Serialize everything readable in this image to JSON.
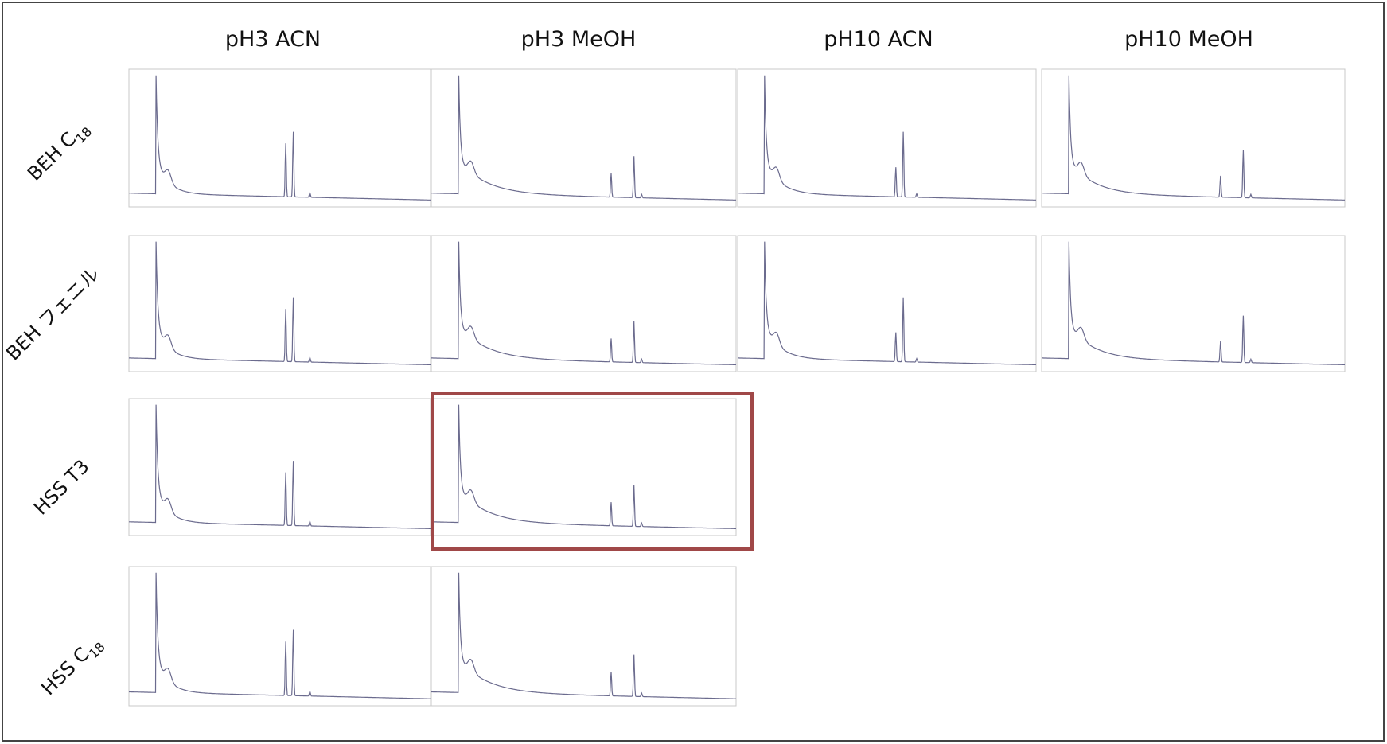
{
  "columns": [
    "pH3 ACN",
    "pH3 MeOH",
    "pH10 ACN",
    "pH10 MeOH"
  ],
  "rows": [
    {
      "label": "BEH C",
      "sub": "18",
      "panels": 4
    },
    {
      "label": "BEH フェニル",
      "panels": 4
    },
    {
      "label": "HSS T3",
      "panels": 2,
      "highlight": 1
    },
    {
      "label": "HSS C",
      "sub": "18",
      "panels": 2
    }
  ]
}
